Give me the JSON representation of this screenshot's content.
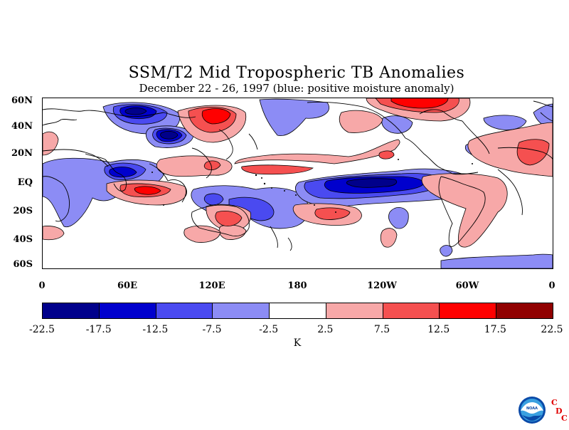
{
  "figure": {
    "title": "SSM/T2 Mid Tropospheric TB Anomalies",
    "subtitle": "December 22 - 26, 1997 (blue: positive moisture anomaly)"
  },
  "map": {
    "lat_labels": [
      "60N",
      "40N",
      "20N",
      "EQ",
      "20S",
      "40S",
      "60S"
    ],
    "lon_labels": [
      "0",
      "60E",
      "120E",
      "180",
      "120W",
      "60W",
      "0"
    ]
  },
  "colorbar": {
    "colors": [
      "#00008b",
      "#0000cd",
      "#4a4af0",
      "#8c8cf5",
      "#ffffff",
      "#f7a8a8",
      "#f55050",
      "#ff0000",
      "#900000"
    ],
    "tick_labels": [
      "-22.5",
      "-17.5",
      "-12.5",
      "-7.5",
      "-2.5",
      "2.5",
      "7.5",
      "12.5",
      "17.5",
      "22.5"
    ],
    "unit": "K"
  },
  "logo": {
    "org": "NOAA",
    "letters": [
      "C",
      "D",
      "C"
    ]
  }
}
